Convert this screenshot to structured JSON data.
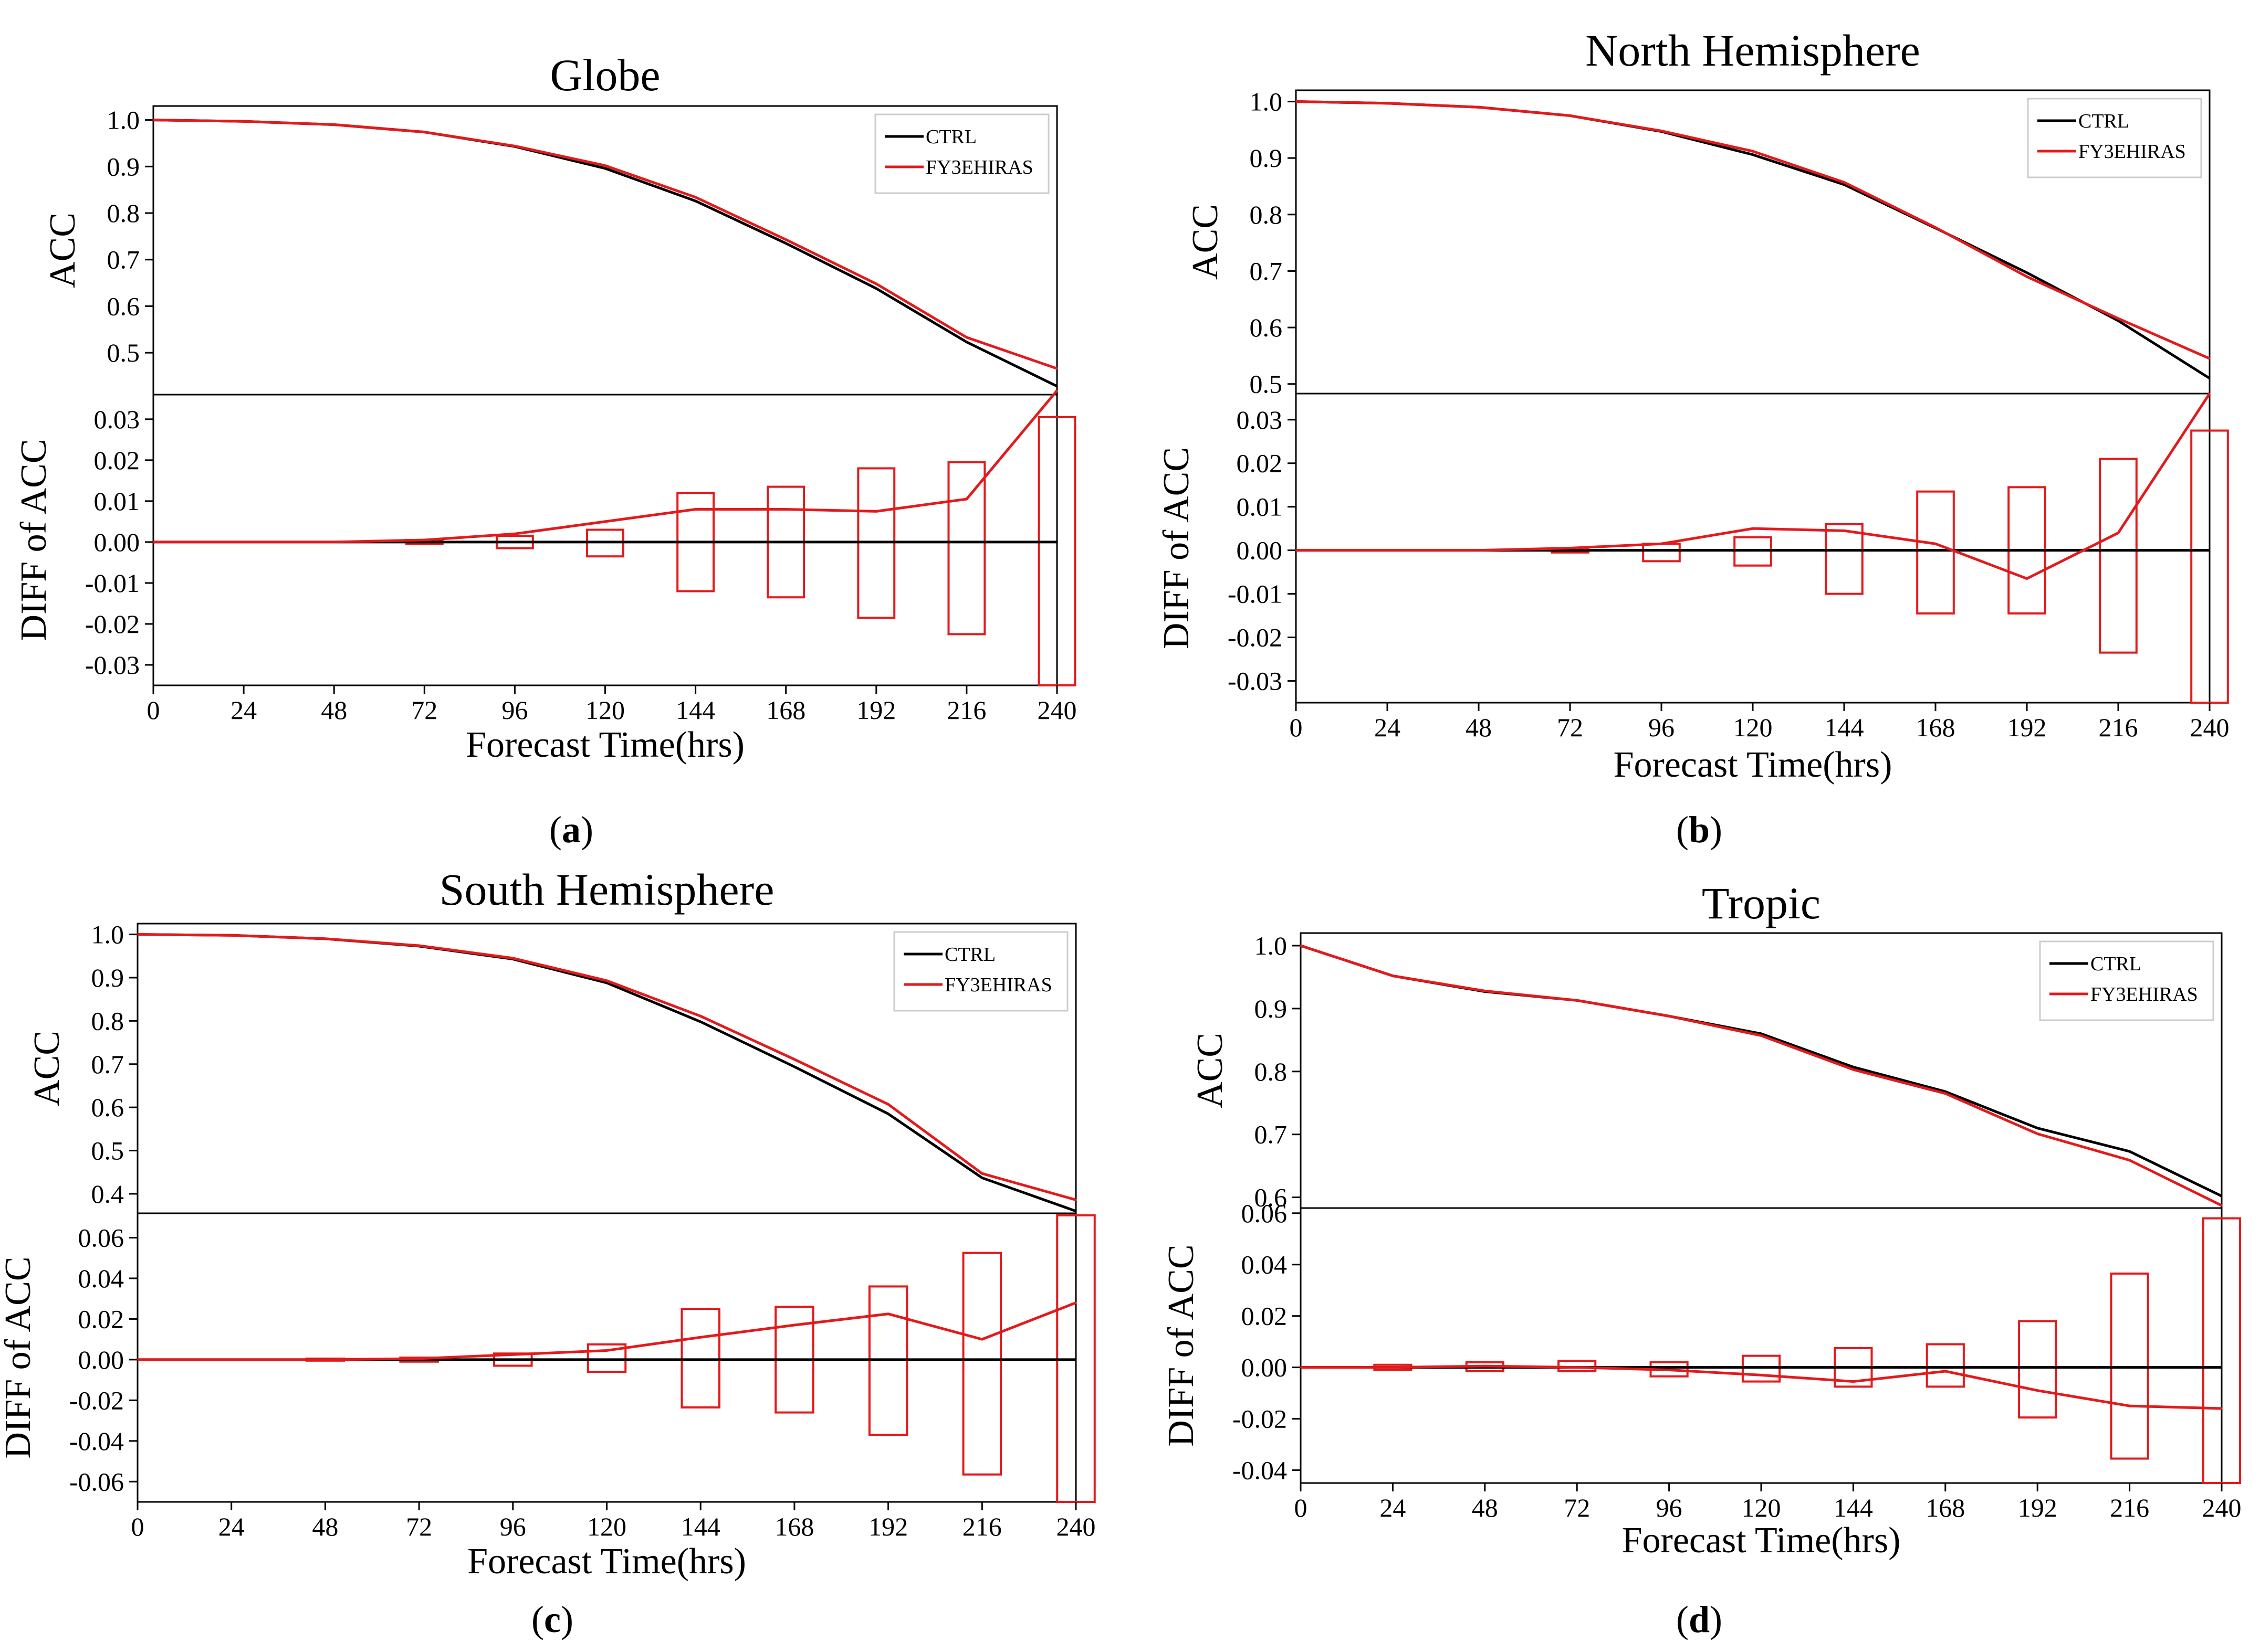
{
  "colors": {
    "ctrl": "#000000",
    "exp": "#e31a1c"
  },
  "chart_data": [
    {
      "type": "line",
      "panel": "a",
      "title": "Globe",
      "caption": "a",
      "xlabel": "Forecast Time(hrs)",
      "x": [
        0,
        24,
        48,
        72,
        96,
        120,
        144,
        168,
        192,
        216,
        240
      ],
      "xticks": [
        "0",
        "24",
        "48",
        "72",
        "96",
        "120",
        "144",
        "168",
        "192",
        "216",
        "240"
      ],
      "xlim": [
        0,
        240
      ],
      "acc": {
        "ylabel": "ACC",
        "ylim": [
          0.41,
          1.03
        ],
        "yticks": [
          "0.5",
          "0.6",
          "0.7",
          "0.8",
          "0.9",
          "1.0"
        ],
        "series": [
          {
            "name": "CTRL",
            "color": "#000000",
            "values": [
              1.0,
              0.997,
              0.99,
              0.974,
              0.943,
              0.896,
              0.826,
              0.735,
              0.638,
              0.523,
              0.428
            ]
          },
          {
            "name": "FY3EHIRAS",
            "color": "#e31a1c",
            "values": [
              1.0,
              0.997,
              0.99,
              0.974,
              0.944,
              0.902,
              0.834,
              0.743,
              0.648,
              0.533,
              0.466
            ]
          }
        ]
      },
      "diff": {
        "ylabel": "DIFF of ACC",
        "ylim": [
          -0.035,
          0.036
        ],
        "yticks": [
          "-0.03",
          "-0.02",
          "-0.01",
          "0.00",
          "0.01",
          "0.02",
          "0.03"
        ],
        "line": [
          0.0,
          0.0,
          0.0,
          0.0005,
          0.002,
          0.005,
          0.008,
          0.008,
          0.0075,
          0.0105,
          0.037
        ],
        "boxes": [
          {
            "x": 72,
            "low": -0.0005,
            "high": 0.0005
          },
          {
            "x": 96,
            "low": -0.0015,
            "high": 0.0015
          },
          {
            "x": 120,
            "low": -0.0035,
            "high": 0.003
          },
          {
            "x": 144,
            "low": -0.012,
            "high": 0.012
          },
          {
            "x": 168,
            "low": -0.0135,
            "high": 0.0135
          },
          {
            "x": 192,
            "low": -0.0185,
            "high": 0.018
          },
          {
            "x": 216,
            "low": -0.0225,
            "high": 0.0195
          },
          {
            "x": 240,
            "low": -0.035,
            "high": 0.0305
          }
        ]
      }
    },
    {
      "type": "line",
      "panel": "b",
      "title": "North Hemisphere",
      "caption": "b",
      "xlabel": "Forecast Time(hrs)",
      "x": [
        0,
        24,
        48,
        72,
        96,
        120,
        144,
        168,
        192,
        216,
        240
      ],
      "xticks": [
        "0",
        "24",
        "48",
        "72",
        "96",
        "120",
        "144",
        "168",
        "192",
        "216",
        "240"
      ],
      "xlim": [
        0,
        240
      ],
      "acc": {
        "ylabel": "ACC",
        "ylim": [
          0.483,
          1.02
        ],
        "yticks": [
          "0.5",
          "0.6",
          "0.7",
          "0.8",
          "0.9",
          "1.0"
        ],
        "series": [
          {
            "name": "CTRL",
            "color": "#000000",
            "values": [
              1.0,
              0.997,
              0.99,
              0.975,
              0.947,
              0.906,
              0.853,
              0.776,
              0.697,
              0.612,
              0.51
            ]
          },
          {
            "name": "FY3EHIRAS",
            "color": "#e31a1c",
            "values": [
              1.0,
              0.997,
              0.99,
              0.975,
              0.948,
              0.912,
              0.857,
              0.777,
              0.69,
              0.616,
              0.545
            ]
          }
        ]
      },
      "diff": {
        "ylabel": "DIFF of ACC",
        "ylim": [
          -0.035,
          0.036
        ],
        "yticks": [
          "-0.03",
          "-0.02",
          "-0.01",
          "0.00",
          "0.01",
          "0.02",
          "0.03"
        ],
        "line": [
          0.0,
          0.0,
          0.0,
          0.0005,
          0.0015,
          0.005,
          0.0045,
          0.0015,
          -0.0065,
          0.004,
          0.036
        ],
        "boxes": [
          {
            "x": 72,
            "low": -0.0005,
            "high": 0.0005
          },
          {
            "x": 96,
            "low": -0.0025,
            "high": 0.0015
          },
          {
            "x": 120,
            "low": -0.0035,
            "high": 0.003
          },
          {
            "x": 144,
            "low": -0.01,
            "high": 0.006
          },
          {
            "x": 168,
            "low": -0.0145,
            "high": 0.0135
          },
          {
            "x": 192,
            "low": -0.0145,
            "high": 0.0145
          },
          {
            "x": 216,
            "low": -0.0235,
            "high": 0.021
          },
          {
            "x": 240,
            "low": -0.035,
            "high": 0.0275
          }
        ]
      }
    },
    {
      "type": "line",
      "panel": "c",
      "title": "South Hemisphere",
      "caption": "c",
      "xlabel": "Forecast Time(hrs)",
      "x": [
        0,
        24,
        48,
        72,
        96,
        120,
        144,
        168,
        192,
        216,
        240
      ],
      "xticks": [
        "0",
        "24",
        "48",
        "72",
        "96",
        "120",
        "144",
        "168",
        "192",
        "216",
        "240"
      ],
      "xlim": [
        0,
        240
      ],
      "acc": {
        "ylabel": "ACC",
        "ylim": [
          0.355,
          1.025
        ],
        "yticks": [
          "0.4",
          "0.5",
          "0.6",
          "0.7",
          "0.8",
          "0.9",
          "1.0"
        ],
        "series": [
          {
            "name": "CTRL",
            "color": "#000000",
            "values": [
              1.0,
              0.998,
              0.99,
              0.973,
              0.943,
              0.888,
              0.798,
              0.694,
              0.585,
              0.437,
              0.36
            ]
          },
          {
            "name": "FY3EHIRAS",
            "color": "#e31a1c",
            "values": [
              1.0,
              0.998,
              0.99,
              0.974,
              0.945,
              0.893,
              0.811,
              0.711,
              0.607,
              0.447,
              0.386
            ]
          }
        ]
      },
      "diff": {
        "ylabel": "DIFF of ACC",
        "ylim": [
          -0.07,
          0.072
        ],
        "yticks": [
          "-0.06",
          "-0.04",
          "-0.02",
          "0.00",
          "0.02",
          "0.04",
          "0.06"
        ],
        "line": [
          0.0,
          0.0,
          0.0,
          0.0005,
          0.0025,
          0.0045,
          0.011,
          0.017,
          0.0225,
          0.01,
          0.028
        ],
        "boxes": [
          {
            "x": 48,
            "low": -0.0005,
            "high": 0.0005
          },
          {
            "x": 72,
            "low": -0.001,
            "high": 0.001
          },
          {
            "x": 96,
            "low": -0.003,
            "high": 0.003
          },
          {
            "x": 120,
            "low": -0.006,
            "high": 0.0075
          },
          {
            "x": 144,
            "low": -0.0235,
            "high": 0.025
          },
          {
            "x": 168,
            "low": -0.026,
            "high": 0.026
          },
          {
            "x": 192,
            "low": -0.037,
            "high": 0.036
          },
          {
            "x": 216,
            "low": -0.0565,
            "high": 0.0525
          },
          {
            "x": 240,
            "low": -0.07,
            "high": 0.071
          }
        ]
      }
    },
    {
      "type": "line",
      "panel": "d",
      "title": "Tropic",
      "caption": "d",
      "xlabel": "Forecast Time(hrs)",
      "x": [
        0,
        24,
        48,
        72,
        96,
        120,
        144,
        168,
        192,
        216,
        240
      ],
      "xticks": [
        "0",
        "24",
        "48",
        "72",
        "96",
        "120",
        "144",
        "168",
        "192",
        "216",
        "240"
      ],
      "xlim": [
        0,
        240
      ],
      "acc": {
        "ylabel": "ACC",
        "ylim": [
          0.583,
          1.02
        ],
        "yticks": [
          "0.6",
          "0.7",
          "0.8",
          "0.9",
          "1.0"
        ],
        "series": [
          {
            "name": "CTRL",
            "color": "#000000",
            "values": [
              1.0,
              0.952,
              0.927,
              0.913,
              0.888,
              0.86,
              0.807,
              0.768,
              0.71,
              0.673,
              0.602
            ]
          },
          {
            "name": "FY3EHIRAS",
            "color": "#e31a1c",
            "values": [
              1.0,
              0.952,
              0.928,
              0.913,
              0.888,
              0.857,
              0.803,
              0.765,
              0.701,
              0.659,
              0.587
            ]
          }
        ]
      },
      "diff": {
        "ylabel": "DIFF of ACC",
        "ylim": [
          -0.045,
          0.062
        ],
        "yticks": [
          "-0.04",
          "-0.02",
          "0.00",
          "0.02",
          "0.04",
          "0.06"
        ],
        "line": [
          0.0,
          0.0,
          0.0005,
          0.0,
          -0.001,
          -0.003,
          -0.0055,
          -0.0015,
          -0.009,
          -0.015,
          -0.016
        ],
        "boxes": [
          {
            "x": 24,
            "low": -0.001,
            "high": 0.001
          },
          {
            "x": 48,
            "low": -0.0015,
            "high": 0.002
          },
          {
            "x": 72,
            "low": -0.0015,
            "high": 0.0025
          },
          {
            "x": 96,
            "low": -0.0035,
            "high": 0.002
          },
          {
            "x": 120,
            "low": -0.0055,
            "high": 0.0045
          },
          {
            "x": 144,
            "low": -0.0075,
            "high": 0.0075
          },
          {
            "x": 168,
            "low": -0.0075,
            "high": 0.009
          },
          {
            "x": 192,
            "low": -0.0195,
            "high": 0.018
          },
          {
            "x": 216,
            "low": -0.0355,
            "high": 0.0365
          },
          {
            "x": 240,
            "low": -0.045,
            "high": 0.058
          }
        ]
      }
    }
  ]
}
